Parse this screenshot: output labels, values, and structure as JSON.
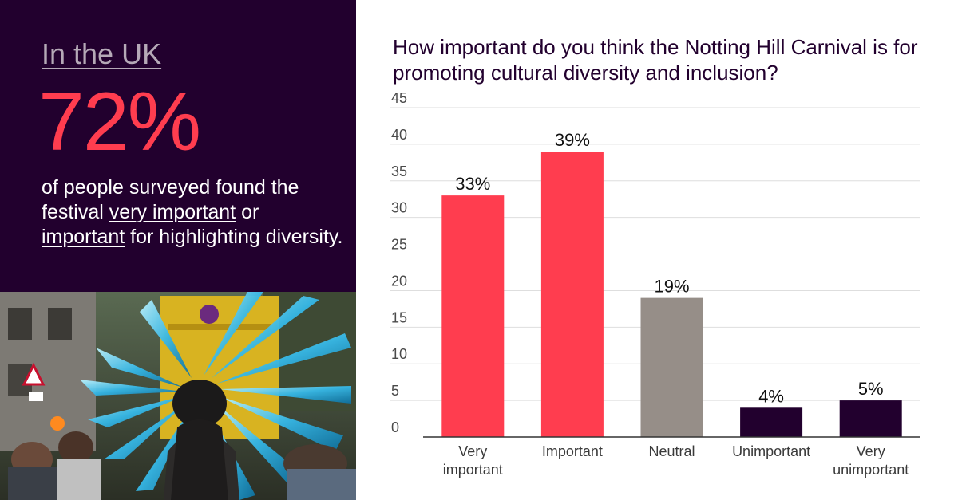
{
  "left_panel": {
    "region": "In the UK",
    "stat": "72%",
    "desc": {
      "part1": "of people surveyed found the festival ",
      "link1": "very important",
      "part2": " or ",
      "link2": "important",
      "part3": " for highlighting diversity."
    }
  },
  "colors": {
    "panel_bg": "#22002e",
    "accent": "#ff3d4f",
    "neutral": "#968e88",
    "dark": "#22002e"
  },
  "chart_data": {
    "type": "bar",
    "title": "How important do you think the Notting Hill Carnival is for promoting cultural diversity and inclusion?",
    "categories": [
      "Very important",
      "Important",
      "Neutral",
      "Unimportant",
      "Very unimportant"
    ],
    "values": [
      33,
      39,
      19,
      4,
      5
    ],
    "data_labels": [
      "33%",
      "39%",
      "19%",
      "4%",
      "5%"
    ],
    "bar_colors": [
      "#ff3d4f",
      "#ff3d4f",
      "#968e88",
      "#22002e",
      "#22002e"
    ],
    "ylim": [
      0,
      45
    ],
    "yticks": [
      0,
      5,
      10,
      15,
      20,
      25,
      30,
      35,
      40,
      45
    ],
    "grid": true,
    "xlabel": "",
    "ylabel": ""
  }
}
